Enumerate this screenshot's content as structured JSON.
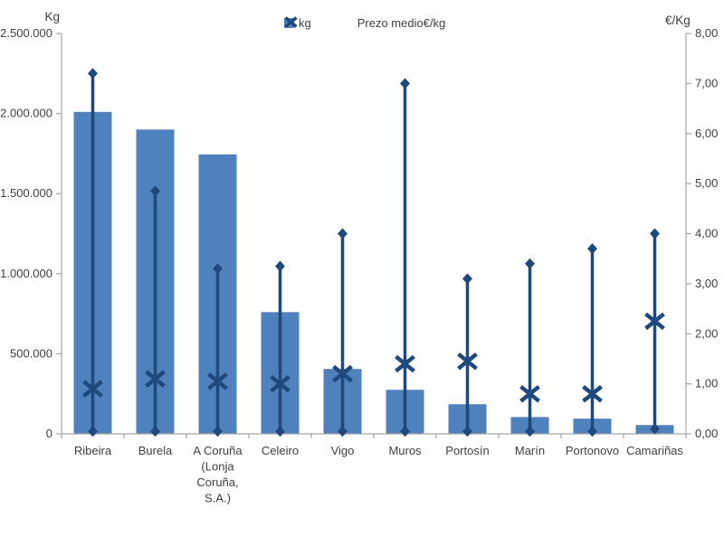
{
  "colors": {
    "bar": "#4f81bd",
    "series_line": "#1f497d",
    "axis_line": "#a6a6a6",
    "text": "#3f3f3f",
    "background": "#ffffff"
  },
  "chart_data": {
    "type": "bar",
    "title": "",
    "grid": false,
    "legend_position": "top",
    "legend": [
      {
        "label": "kg",
        "marker": "square"
      },
      {
        "label": "Prezo medio€/kg",
        "marker": "x"
      }
    ],
    "left_axis": {
      "title": "Kg",
      "min": 0,
      "max": 2500000,
      "step": 500000,
      "tick_labels": [
        "0",
        "500.000",
        "1.000.000",
        "1.500.000",
        "2.000.000",
        "2.500.000"
      ]
    },
    "right_axis": {
      "title": "€/Kg",
      "min": 0,
      "max": 8,
      "step": 1,
      "tick_labels": [
        "0,00",
        "1,00",
        "2,00",
        "3,00",
        "4,00",
        "5,00",
        "6,00",
        "7,00",
        "8,00"
      ]
    },
    "categories": [
      "Ribeira",
      "Burela",
      "A Coruña (Lonja Coruña, S.A.)",
      "Celeiro",
      "Vigo",
      "Muros",
      "Portosín",
      "Marín",
      "Portonovo",
      "Camariñas"
    ],
    "category_display_lines": [
      [
        "Ribeira"
      ],
      [
        "Burela"
      ],
      [
        "A Coruña",
        "(Lonja",
        "Coruña,",
        "S.A.)"
      ],
      [
        "Celeiro"
      ],
      [
        "Vigo"
      ],
      [
        "Muros"
      ],
      [
        "Portosín"
      ],
      [
        "Marín"
      ],
      [
        "Portonovo"
      ],
      [
        "Camariñas"
      ]
    ],
    "series": [
      {
        "name": "kg",
        "type": "bar",
        "axis": "left",
        "values": [
          2010000,
          1900000,
          1745000,
          760000,
          405000,
          275000,
          185000,
          105000,
          95000,
          55000
        ]
      },
      {
        "name": "Prezo medio€/kg",
        "type": "x_marker_with_range",
        "axis": "right",
        "avg": [
          0.9,
          1.1,
          1.05,
          1.0,
          1.2,
          1.4,
          1.45,
          0.8,
          0.8,
          2.25
        ],
        "range_max": [
          7.2,
          4.85,
          3.3,
          3.35,
          4.0,
          7.0,
          3.1,
          3.4,
          3.7,
          4.0
        ],
        "range_min": [
          0.05,
          0.05,
          0.05,
          0.05,
          0.05,
          0.05,
          0.05,
          0.05,
          0.05,
          0.1
        ]
      }
    ]
  }
}
